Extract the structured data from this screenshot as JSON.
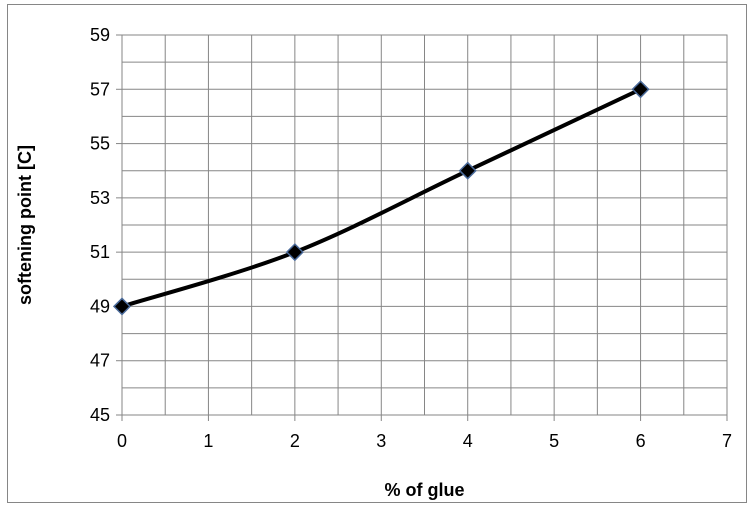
{
  "chart_data": {
    "type": "line",
    "title": "",
    "xlabel": "% of glue",
    "ylabel": "softening point [C]",
    "xlim": [
      0,
      7
    ],
    "ylim": [
      45,
      59
    ],
    "x_ticks": [
      0,
      1,
      2,
      3,
      4,
      5,
      6,
      7
    ],
    "y_ticks": [
      45,
      47,
      49,
      51,
      53,
      55,
      57,
      59
    ],
    "grid": true,
    "smooth": true,
    "legend": "none",
    "series": [
      {
        "x": [
          0,
          2,
          4,
          6
        ],
        "y": [
          49,
          51,
          54,
          57
        ],
        "line_color": "#000000",
        "marker": "diamond",
        "marker_color": "#000000",
        "marker_edge_color": "#4a6a9a"
      }
    ]
  }
}
